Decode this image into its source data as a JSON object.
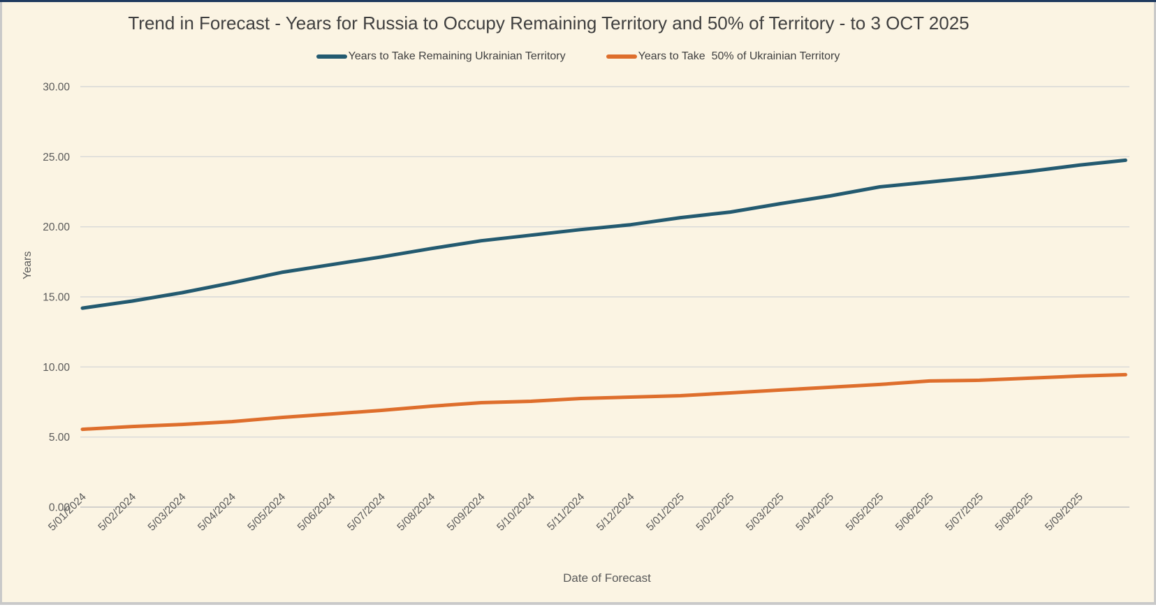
{
  "page": {
    "background_color": "#FBF4E3",
    "top_edge_color": "#1F3A5F",
    "border_color": "#C9C9C9"
  },
  "chart_data": {
    "type": "line",
    "title": "Trend in Forecast - Years for Russia to Occupy Remaining Territory and 50% of Territory - to 3 OCT 2025",
    "xlabel": "Date of Forecast",
    "ylabel": "Years",
    "ylim": [
      0,
      30
    ],
    "ytick_step": 5,
    "ytick_labels": [
      "0.00",
      "5.00",
      "10.00",
      "15.00",
      "20.00",
      "25.00",
      "30.00"
    ],
    "grid": true,
    "legend_position": "top-center",
    "x_tick_labels": [
      "5/01/2024",
      "5/02/2024",
      "5/03/2024",
      "5/04/2024",
      "5/05/2024",
      "5/06/2024",
      "5/07/2024",
      "5/08/2024",
      "5/09/2024",
      "5/10/2024",
      "5/11/2024",
      "5/12/2024",
      "5/01/2025",
      "5/02/2025",
      "5/03/2025",
      "5/04/2025",
      "5/05/2025",
      "5/06/2025",
      "5/07/2025",
      "5/08/2025",
      "5/09/2025"
    ],
    "x_months": [
      0,
      1,
      2,
      3,
      4,
      5,
      6,
      7,
      8,
      9,
      10,
      11,
      12,
      13,
      14,
      15,
      16,
      17,
      18,
      19,
      20,
      20.93
    ],
    "series": [
      {
        "name": "Years to Take Remaining Ukrainian Territory",
        "color": "#235A70",
        "values": [
          14.2,
          14.7,
          15.3,
          16.0,
          16.75,
          17.3,
          17.85,
          18.45,
          19.0,
          19.4,
          19.8,
          20.15,
          20.65,
          21.05,
          21.65,
          22.2,
          22.85,
          23.2,
          23.55,
          23.95,
          24.4,
          24.75
        ]
      },
      {
        "name": "Years to Take  50% of Ukrainian Territory",
        "color": "#DE6E2C",
        "values": [
          5.55,
          5.75,
          5.9,
          6.1,
          6.4,
          6.65,
          6.9,
          7.2,
          7.45,
          7.55,
          7.75,
          7.85,
          7.95,
          8.15,
          8.35,
          8.55,
          8.75,
          9.0,
          9.05,
          9.2,
          9.35,
          9.45
        ]
      }
    ]
  }
}
